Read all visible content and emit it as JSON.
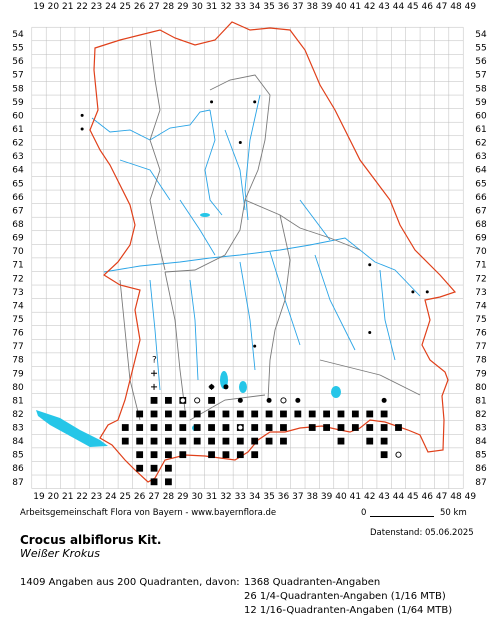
{
  "map": {
    "x_labels": [
      "19",
      "20",
      "21",
      "22",
      "23",
      "24",
      "25",
      "26",
      "27",
      "28",
      "29",
      "30",
      "31",
      "32",
      "33",
      "34",
      "35",
      "36",
      "37",
      "38",
      "39",
      "40",
      "41",
      "42",
      "43",
      "44",
      "45",
      "46",
      "47",
      "48",
      "49"
    ],
    "y_labels": [
      "54",
      "55",
      "56",
      "57",
      "58",
      "59",
      "60",
      "61",
      "62",
      "63",
      "64",
      "65",
      "66",
      "67",
      "68",
      "69",
      "70",
      "71",
      "72",
      "73",
      "74",
      "75",
      "76",
      "77",
      "78",
      "79",
      "80",
      "81",
      "82",
      "83",
      "84",
      "85",
      "86",
      "87"
    ],
    "colors": {
      "grid": "#bdbdbd",
      "border_state": "#e0401a",
      "border_district": "#7a7a7a",
      "rivers": "#2aa4e6",
      "lakes": "#26c6e8",
      "marks": "#000000"
    },
    "symbol_names": [
      "filled-square",
      "filled-circle",
      "open-circle",
      "cross",
      "question-mark",
      "dot"
    ]
  },
  "footer": {
    "credit": "Arbeitsgemeinschaft Flora von Bayern - www.bayernflora.de",
    "scale_zero": "0",
    "scale_text": "50 km",
    "date": "Datenstand: 05.06.2025"
  },
  "species": {
    "name": "Crocus albiflorus Kit.",
    "common": "Weißer Krokus"
  },
  "stats": {
    "summary": "1409 Angaben aus 200 Quadranten, davon:",
    "line1": "1368 Quadranten-Angaben",
    "line2": "26 1/4-Quadranten-Angaben (1/16 MTB)",
    "line3": "12 1/16-Quadranten-Angaben (1/64 MTB)"
  }
}
